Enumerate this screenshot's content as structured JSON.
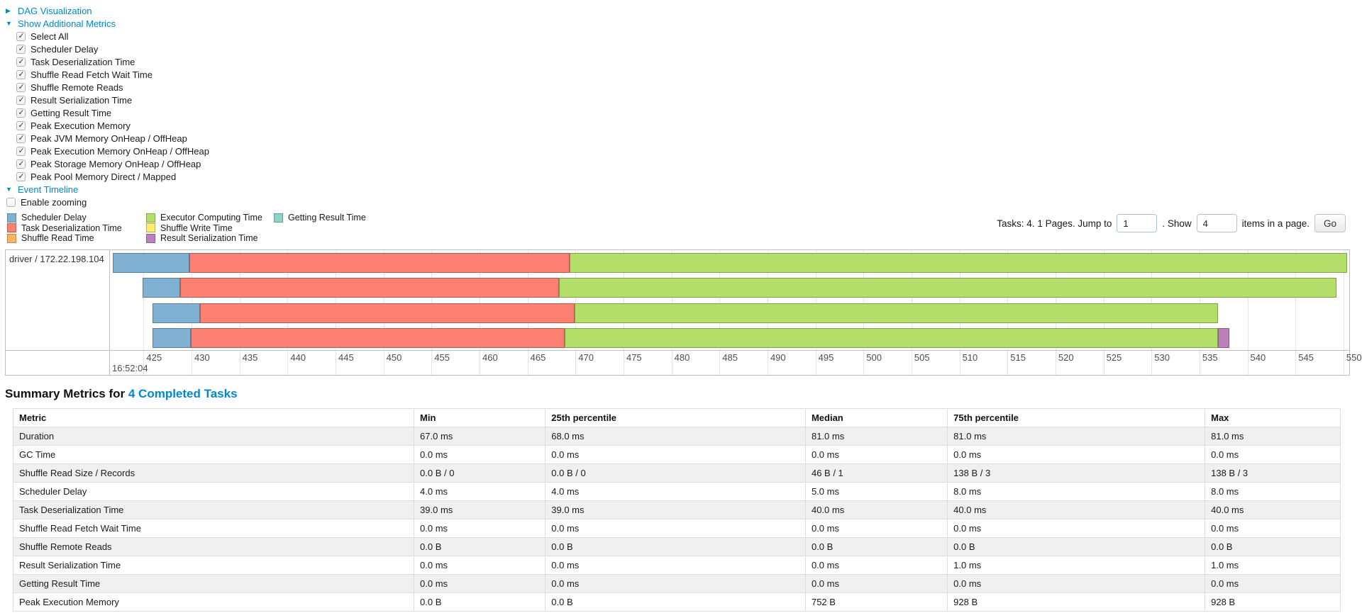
{
  "colors": {
    "link": "#0088cc",
    "scheduler_delay": "#80B1D3",
    "task_deserialization": "#FB8072",
    "shuffle_read": "#FDB462",
    "executor_computing": "#B3DE69",
    "shuffle_write": "#FFED6F",
    "result_serialization": "#BC80BD",
    "getting_result": "#8DD3C7",
    "grid_line": "#e4e4e4",
    "chart_border": "#bfbfbf",
    "row_stripe": "#f0f0f0"
  },
  "panels": {
    "dag": {
      "label": "DAG Visualization",
      "state": "collapsed",
      "arrow": "▶"
    },
    "metrics": {
      "label": "Show Additional Metrics",
      "state": "expanded",
      "arrow": "▼"
    },
    "timeline": {
      "label": "Event Timeline",
      "state": "expanded",
      "arrow": "▼"
    }
  },
  "metric_checkboxes": [
    {
      "label": "Select All",
      "checked": true
    },
    {
      "label": "Scheduler Delay",
      "checked": true
    },
    {
      "label": "Task Deserialization Time",
      "checked": true
    },
    {
      "label": "Shuffle Read Fetch Wait Time",
      "checked": true
    },
    {
      "label": "Shuffle Remote Reads",
      "checked": true
    },
    {
      "label": "Result Serialization Time",
      "checked": true
    },
    {
      "label": "Getting Result Time",
      "checked": true
    },
    {
      "label": "Peak Execution Memory",
      "checked": true
    },
    {
      "label": "Peak JVM Memory OnHeap / OffHeap",
      "checked": true
    },
    {
      "label": "Peak Execution Memory OnHeap / OffHeap",
      "checked": true
    },
    {
      "label": "Peak Storage Memory OnHeap / OffHeap",
      "checked": true
    },
    {
      "label": "Peak Pool Memory Direct / Mapped",
      "checked": true
    }
  ],
  "enable_zooming": {
    "label": "Enable zooming",
    "checked": false
  },
  "legend": {
    "items": [
      {
        "label": "Scheduler Delay",
        "color": "#80B1D3"
      },
      {
        "label": "Task Deserialization Time",
        "color": "#FB8072"
      },
      {
        "label": "Shuffle Read Time",
        "color": "#FDB462"
      },
      {
        "label": "Executor Computing Time",
        "color": "#B3DE69"
      },
      {
        "label": "Shuffle Write Time",
        "color": "#FFED6F"
      },
      {
        "label": "Result Serialization Time",
        "color": "#BC80BD"
      },
      {
        "label": "Getting Result Time",
        "color": "#8DD3C7"
      }
    ]
  },
  "pagination": {
    "tasks_text": "Tasks: 4. 1 Pages. Jump to",
    "jump_value": "1",
    "show_text": ". Show",
    "show_value": "4",
    "items_text": "items in a page.",
    "go_label": "Go"
  },
  "chart_data": {
    "type": "timeline-gantt",
    "group_label": "driver / 172.22.198.104",
    "x_axis": {
      "domain_min": 421.5,
      "domain_max": 550.6,
      "first_tick": 425,
      "last_tick": 550,
      "tick_step": 5,
      "major_label": "16:52:04",
      "unit": "ms within second 16:52:04"
    },
    "tasks": [
      {
        "launch": 421.8,
        "scheduler_delay": 8.0,
        "deserialization": 39.6,
        "computing": 81.0,
        "result_serialization": 0
      },
      {
        "launch": 424.9,
        "scheduler_delay": 3.9,
        "deserialization": 39.5,
        "computing": 81.0,
        "result_serialization": 0
      },
      {
        "launch": 425.9,
        "scheduler_delay": 5.0,
        "deserialization": 39.0,
        "computing": 67.0,
        "result_serialization": 0
      },
      {
        "launch": 425.9,
        "scheduler_delay": 4.0,
        "deserialization": 39.0,
        "computing": 68.0,
        "result_serialization": 1.2
      }
    ],
    "segment_colors": {
      "scheduler_delay": "#80B1D3",
      "deserialization": "#FB8072",
      "computing": "#B3DE69",
      "result_serialization": "#BC80BD"
    }
  },
  "summary": {
    "title": "Summary Metrics for",
    "link_text": "4 Completed Tasks",
    "table": {
      "columns": [
        "Metric",
        "Min",
        "25th percentile",
        "Median",
        "75th percentile",
        "Max"
      ],
      "col_widths": [
        "30.2%",
        "9.9%",
        "19.6%",
        "10.7%",
        "19.4%",
        "10.2%"
      ],
      "rows": [
        {
          "metric": "Duration",
          "values": [
            "67.0 ms",
            "68.0 ms",
            "81.0 ms",
            "81.0 ms",
            "81.0 ms"
          ]
        },
        {
          "metric": "GC Time",
          "values": [
            "0.0 ms",
            "0.0 ms",
            "0.0 ms",
            "0.0 ms",
            "0.0 ms"
          ]
        },
        {
          "metric": "Shuffle Read Size / Records",
          "values": [
            "0.0 B / 0",
            "0.0 B / 0",
            "46 B / 1",
            "138 B / 3",
            "138 B / 3"
          ]
        },
        {
          "metric": "Scheduler Delay",
          "values": [
            "4.0 ms",
            "4.0 ms",
            "5.0 ms",
            "8.0 ms",
            "8.0 ms"
          ]
        },
        {
          "metric": "Task Deserialization Time",
          "values": [
            "39.0 ms",
            "39.0 ms",
            "40.0 ms",
            "40.0 ms",
            "40.0 ms"
          ]
        },
        {
          "metric": "Shuffle Read Fetch Wait Time",
          "values": [
            "0.0 ms",
            "0.0 ms",
            "0.0 ms",
            "0.0 ms",
            "0.0 ms"
          ]
        },
        {
          "metric": "Shuffle Remote Reads",
          "values": [
            "0.0 B",
            "0.0 B",
            "0.0 B",
            "0.0 B",
            "0.0 B"
          ]
        },
        {
          "metric": "Result Serialization Time",
          "values": [
            "0.0 ms",
            "0.0 ms",
            "0.0 ms",
            "1.0 ms",
            "1.0 ms"
          ]
        },
        {
          "metric": "Getting Result Time",
          "values": [
            "0.0 ms",
            "0.0 ms",
            "0.0 ms",
            "0.0 ms",
            "0.0 ms"
          ]
        },
        {
          "metric": "Peak Execution Memory",
          "values": [
            "0.0 B",
            "0.0 B",
            "752 B",
            "928 B",
            "928 B"
          ]
        }
      ]
    }
  }
}
